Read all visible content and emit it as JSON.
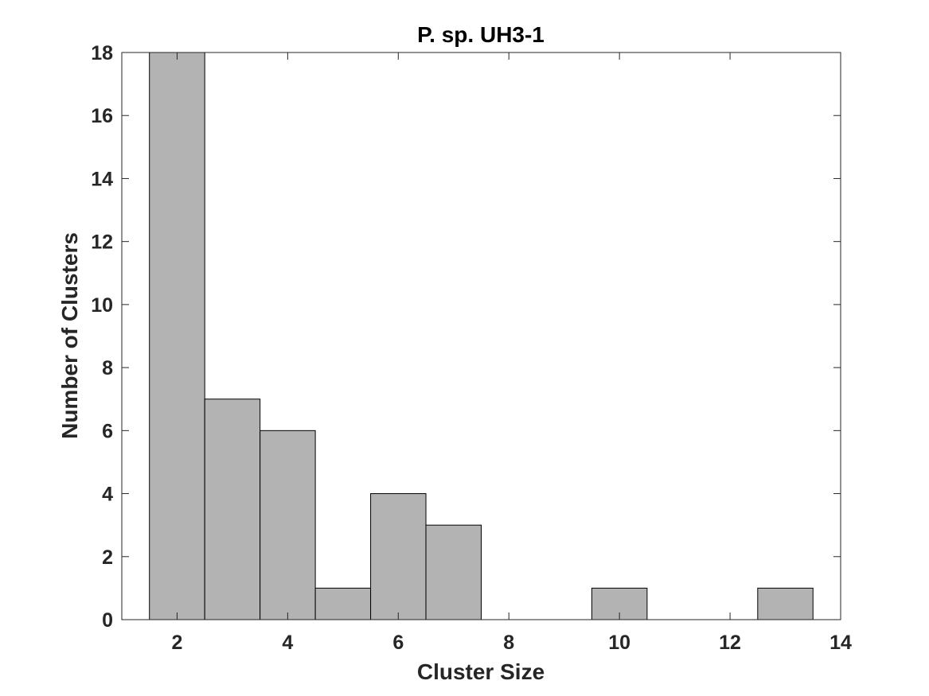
{
  "chart_data": {
    "type": "bar",
    "title": "P. sp. UH3-1",
    "xlabel": "Cluster Size",
    "ylabel": "Number of Clusters",
    "xlim": [
      1,
      14
    ],
    "ylim": [
      0,
      18
    ],
    "xticks": [
      2,
      4,
      6,
      8,
      10,
      12,
      14
    ],
    "yticks": [
      0,
      2,
      4,
      6,
      8,
      10,
      12,
      14,
      16,
      18
    ],
    "bin_width": 1,
    "bins": [
      {
        "x": 2,
        "value": 18
      },
      {
        "x": 3,
        "value": 7
      },
      {
        "x": 4,
        "value": 6
      },
      {
        "x": 5,
        "value": 1
      },
      {
        "x": 6,
        "value": 4
      },
      {
        "x": 7,
        "value": 3
      },
      {
        "x": 10,
        "value": 1
      },
      {
        "x": 13,
        "value": 1
      }
    ],
    "bar_color": "#b3b3b3",
    "edge_color": "#000000",
    "grid": false
  }
}
